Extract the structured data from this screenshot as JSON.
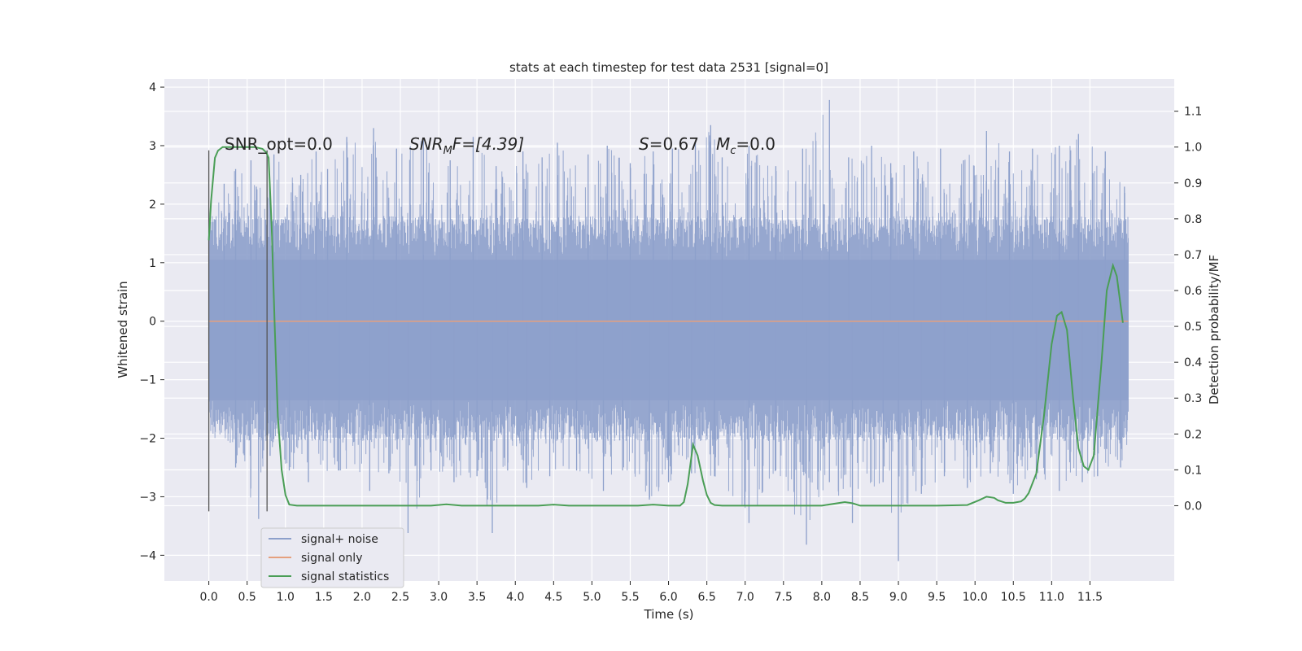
{
  "chart_data": {
    "type": "line",
    "title": "stats at each timestep for test data 2531 [signal=0]",
    "xlabel": "Time (s)",
    "ylabel": "Whitened strain",
    "ylabel_right": "Detection probability/MF",
    "xlim": [
      -0.58,
      12.6
    ],
    "ylim": [
      -4.44,
      4.14
    ],
    "ylim_right": [
      -0.21,
      1.19
    ],
    "x_ticks": [
      "0.0",
      "0.5",
      "1.0",
      "1.5",
      "2.0",
      "2.5",
      "3.0",
      "3.5",
      "4.0",
      "4.5",
      "5.0",
      "5.5",
      "6.0",
      "6.5",
      "7.0",
      "7.5",
      "8.0",
      "8.5",
      "9.0",
      "9.5",
      "10.0",
      "10.5",
      "11.0",
      "11.5"
    ],
    "y_ticks": [
      "4",
      "3",
      "2",
      "1",
      "0",
      "−1",
      "−2",
      "−3",
      "−4"
    ],
    "y_right_ticks": [
      "1.1",
      "1.0",
      "0.9",
      "0.8",
      "0.7",
      "0.6",
      "0.5",
      "0.4",
      "0.3",
      "0.2",
      "0.1",
      "0.0"
    ],
    "grid": true,
    "legend": {
      "placement": "lower-left",
      "entries": [
        {
          "label": "signal+ noise",
          "color": "#8da0cb"
        },
        {
          "label": "signal only",
          "color": "#e5a07e"
        },
        {
          "label": "signal statistics",
          "color": "#4a9e56"
        }
      ]
    },
    "annotations": {
      "snr_opt": "SNR_opt=0.0",
      "snr_mf_main": "SNR",
      "snr_mf_sub": "M",
      "snr_mf_rest": "F=[4.39]",
      "s_main": "S",
      "s_rest": "=0.67",
      "mc_main": "M",
      "mc_sub": "c",
      "mc_rest": "=0.0"
    },
    "markers": [
      {
        "x": 0.0,
        "y_range": [
          -3.25,
          2.92
        ]
      },
      {
        "x": 0.76,
        "y_range": [
          -3.25,
          2.92
        ]
      }
    ],
    "series": [
      {
        "name": "signal+ noise",
        "color": "#8da0cb",
        "x_range": [
          0.0,
          12.0
        ],
        "y_range": [
          -4.1,
          3.78
        ],
        "peaks_high": [
          [
            0.0,
            1.55
          ],
          [
            0.2,
            2.35
          ],
          [
            0.35,
            2.6
          ],
          [
            0.55,
            2.75
          ],
          [
            0.62,
            2.3
          ],
          [
            0.85,
            2.85
          ],
          [
            1.2,
            2.5
          ],
          [
            1.4,
            2.9
          ],
          [
            1.55,
            2.6
          ],
          [
            1.8,
            3.15
          ],
          [
            2.15,
            3.3
          ],
          [
            2.45,
            2.95
          ],
          [
            2.8,
            3.1
          ],
          [
            3.15,
            2.75
          ],
          [
            3.45,
            3.15
          ],
          [
            3.75,
            2.65
          ],
          [
            4.1,
            2.9
          ],
          [
            4.35,
            2.8
          ],
          [
            4.55,
            3.05
          ],
          [
            4.95,
            2.85
          ],
          [
            5.2,
            3.0
          ],
          [
            5.5,
            2.7
          ],
          [
            5.8,
            2.9
          ],
          [
            6.05,
            2.95
          ],
          [
            6.35,
            3.05
          ],
          [
            6.55,
            3.35
          ],
          [
            6.7,
            2.8
          ],
          [
            7.05,
            3.0
          ],
          [
            7.4,
            2.65
          ],
          [
            7.75,
            2.95
          ],
          [
            8.1,
            3.78
          ],
          [
            8.35,
            2.8
          ],
          [
            8.65,
            3.0
          ],
          [
            8.9,
            2.7
          ],
          [
            9.2,
            2.9
          ],
          [
            9.55,
            2.95
          ],
          [
            9.85,
            2.75
          ],
          [
            10.15,
            3.25
          ],
          [
            10.45,
            2.9
          ],
          [
            10.75,
            2.95
          ],
          [
            11.1,
            3.0
          ],
          [
            11.35,
            3.2
          ],
          [
            11.7,
            2.9
          ],
          [
            11.95,
            2.3
          ]
        ],
        "peaks_low": [
          [
            0.0,
            -0.4
          ],
          [
            0.35,
            -2.5
          ],
          [
            0.65,
            -3.38
          ],
          [
            0.8,
            -2.3
          ],
          [
            1.05,
            -2.55
          ],
          [
            1.3,
            -2.75
          ],
          [
            1.7,
            -2.55
          ],
          [
            2.1,
            -2.9
          ],
          [
            2.35,
            -2.6
          ],
          [
            2.6,
            -3.62
          ],
          [
            2.9,
            -2.55
          ],
          [
            3.2,
            -2.75
          ],
          [
            3.5,
            -2.65
          ],
          [
            3.7,
            -3.62
          ],
          [
            3.9,
            -2.55
          ],
          [
            4.15,
            -2.85
          ],
          [
            4.45,
            -2.65
          ],
          [
            4.8,
            -2.55
          ],
          [
            5.15,
            -2.9
          ],
          [
            5.4,
            -2.55
          ],
          [
            5.75,
            -3.05
          ],
          [
            6.0,
            -2.75
          ],
          [
            6.3,
            -2.6
          ],
          [
            6.6,
            -2.65
          ],
          [
            7.05,
            -3.45
          ],
          [
            7.4,
            -2.55
          ],
          [
            7.8,
            -3.82
          ],
          [
            8.1,
            -2.75
          ],
          [
            8.4,
            -3.45
          ],
          [
            8.8,
            -2.75
          ],
          [
            9.0,
            -4.1
          ],
          [
            9.3,
            -2.95
          ],
          [
            9.6,
            -2.65
          ],
          [
            9.9,
            -2.85
          ],
          [
            10.2,
            -2.6
          ],
          [
            10.5,
            -2.95
          ],
          [
            10.8,
            -2.7
          ],
          [
            11.1,
            -2.9
          ],
          [
            11.4,
            -2.75
          ],
          [
            11.6,
            -2.65
          ],
          [
            11.9,
            -2.5
          ]
        ]
      },
      {
        "name": "signal only",
        "color": "#e5a07e",
        "x": [
          0.0,
          12.0
        ],
        "y": [
          0.0,
          0.0
        ]
      },
      {
        "name": "signal statistics",
        "color": "#4a9e56",
        "x": [
          0.0,
          0.03,
          0.08,
          0.12,
          0.18,
          0.3,
          0.45,
          0.6,
          0.7,
          0.75,
          0.78,
          0.82,
          0.86,
          0.9,
          0.95,
          1.0,
          1.05,
          1.15,
          1.5,
          2.0,
          2.5,
          2.9,
          3.1,
          3.3,
          3.8,
          4.3,
          4.5,
          4.7,
          5.2,
          5.6,
          5.8,
          6.0,
          6.15,
          6.2,
          6.25,
          6.32,
          6.38,
          6.45,
          6.5,
          6.55,
          6.6,
          6.7,
          7.0,
          7.5,
          8.0,
          8.3,
          8.4,
          8.5,
          8.7,
          9.0,
          9.5,
          9.9,
          10.05,
          10.15,
          10.25,
          10.3,
          10.4,
          10.5,
          10.6,
          10.65,
          10.7,
          10.8,
          10.9,
          11.0,
          11.07,
          11.13,
          11.2,
          11.28,
          11.35,
          11.42,
          11.48,
          11.55,
          11.65,
          11.72,
          11.8,
          11.85,
          11.93
        ],
        "y": [
          0.74,
          0.85,
          0.97,
          0.99,
          1.0,
          1.0,
          1.0,
          1.0,
          0.995,
          0.985,
          0.97,
          0.78,
          0.5,
          0.25,
          0.1,
          0.03,
          0.003,
          0.0,
          0.0,
          0.0,
          0.0,
          0.0,
          0.004,
          0.0,
          0.0,
          0.0,
          0.003,
          0.0,
          0.0,
          0.0,
          0.003,
          0.0,
          0.0,
          0.01,
          0.06,
          0.17,
          0.14,
          0.07,
          0.03,
          0.008,
          0.002,
          0.0,
          0.0,
          0.0,
          0.0,
          0.01,
          0.007,
          0.0,
          0.0,
          0.0,
          0.0,
          0.002,
          0.015,
          0.025,
          0.022,
          0.015,
          0.008,
          0.008,
          0.012,
          0.02,
          0.035,
          0.09,
          0.25,
          0.45,
          0.53,
          0.54,
          0.49,
          0.3,
          0.16,
          0.11,
          0.1,
          0.14,
          0.4,
          0.6,
          0.67,
          0.64,
          0.51
        ]
      }
    ]
  }
}
